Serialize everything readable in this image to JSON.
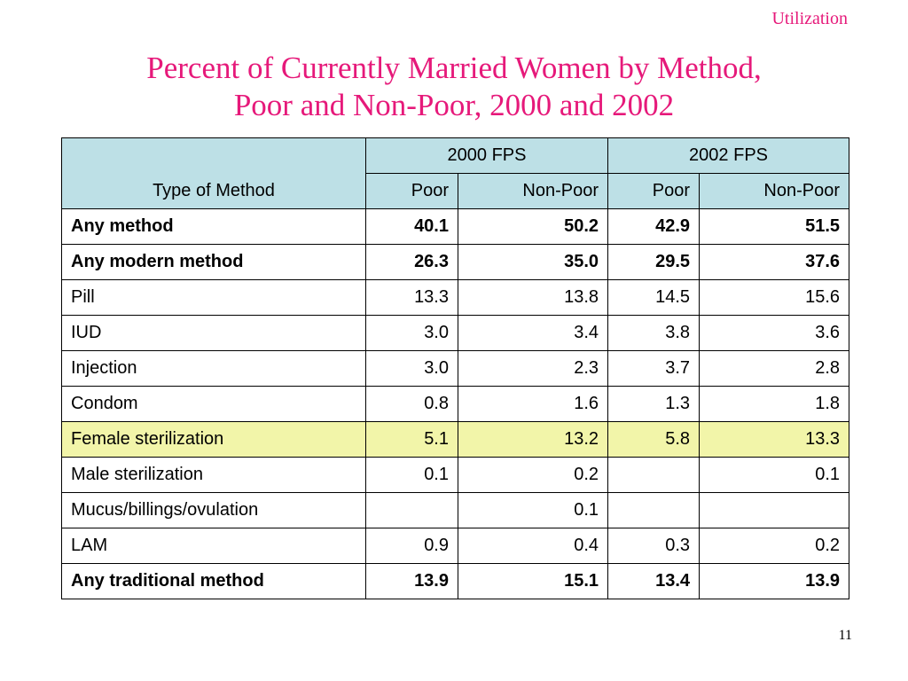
{
  "header": {
    "section_label": "Utilization"
  },
  "title": {
    "line1": "Percent of Currently Married Women by Method,",
    "line2": "Poor and Non-Poor, 2000 and 2002"
  },
  "table": {
    "type_header": "Type of Method",
    "groups": [
      "2000 FPS",
      "2002 FPS"
    ],
    "subheaders": [
      "Poor",
      "Non-Poor",
      "Poor",
      "Non-Poor"
    ],
    "rows": [
      {
        "method": "Any method",
        "values": [
          "40.1",
          "50.2",
          "42.9",
          "51.5"
        ]
      },
      {
        "method": "Any modern method",
        "values": [
          "26.3",
          "35.0",
          "29.5",
          "37.6"
        ]
      },
      {
        "method": "Pill",
        "values": [
          "13.3",
          "13.8",
          "14.5",
          "15.6"
        ]
      },
      {
        "method": "IUD",
        "values": [
          "3.0",
          "3.4",
          "3.8",
          "3.6"
        ]
      },
      {
        "method": "Injection",
        "values": [
          "3.0",
          "2.3",
          "3.7",
          "2.8"
        ]
      },
      {
        "method": "Condom",
        "values": [
          "0.8",
          "1.6",
          "1.3",
          "1.8"
        ]
      },
      {
        "method": "Female sterilization",
        "values": [
          "5.1",
          "13.2",
          "5.8",
          "13.3"
        ]
      },
      {
        "method": "Male sterilization",
        "values": [
          "0.1",
          "0.2",
          "",
          "0.1"
        ]
      },
      {
        "method": "Mucus/billings/ovulation",
        "values": [
          "",
          "0.1",
          "",
          ""
        ]
      },
      {
        "method": "LAM",
        "values": [
          "0.9",
          "0.4",
          "0.3",
          "0.2"
        ]
      },
      {
        "method": "Any traditional method",
        "values": [
          "13.9",
          "15.1",
          "13.4",
          "13.9"
        ]
      }
    ]
  },
  "highlight_color": "#f2f5a9",
  "header_color": "#bde0e6",
  "accent_color": "#e6197a",
  "footer": {
    "page_number": "11"
  }
}
